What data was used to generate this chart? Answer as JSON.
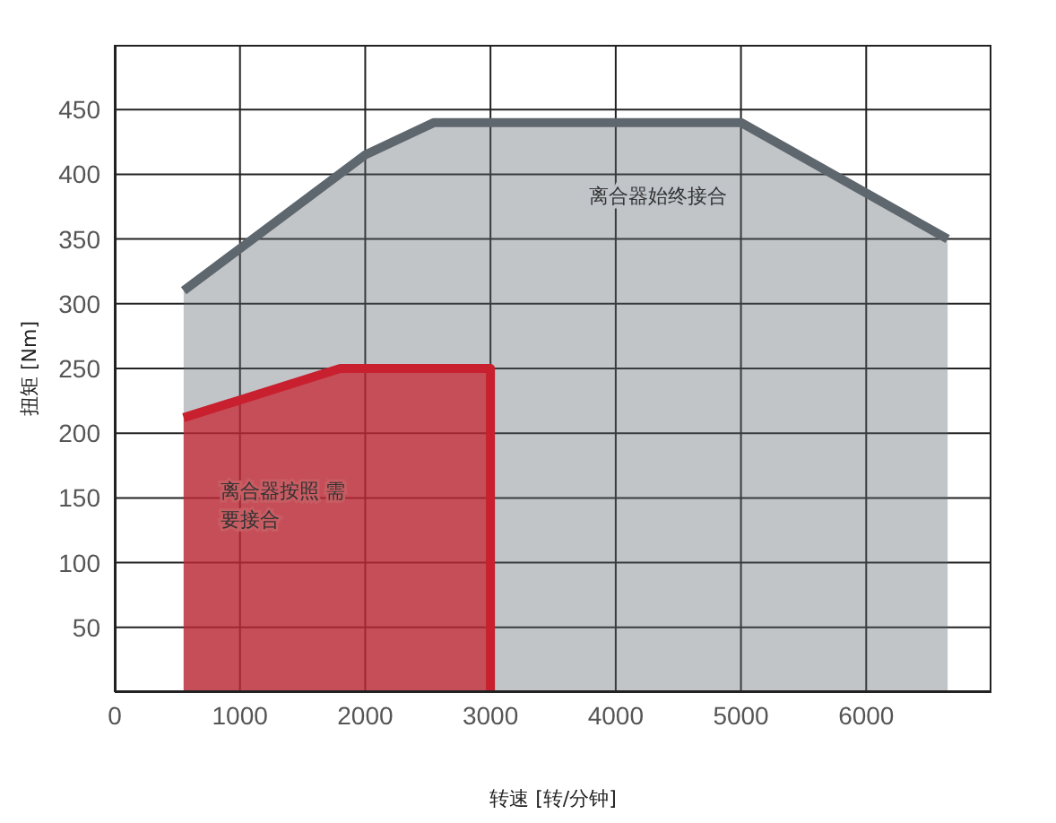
{
  "chart_data": {
    "type": "area",
    "xlabel": "转速 [转/分钟]",
    "ylabel": "扭矩 [Nm]",
    "xlim": [
      0,
      7000
    ],
    "xticks": [
      0,
      1000,
      2000,
      3000,
      4000,
      5000,
      6000
    ],
    "ylim": [
      0,
      500
    ],
    "yticks": [
      50,
      100,
      150,
      200,
      250,
      300,
      350,
      400,
      450
    ],
    "grid": true,
    "series": [
      {
        "color": "#5e666e",
        "x": [
          550,
          2000,
          2550,
          5000,
          6650
        ],
        "values": [
          310,
          415,
          440,
          440,
          350
        ]
      },
      {
        "color": "#c8202e",
        "x": [
          550,
          1800,
          3000,
          3000
        ],
        "values": [
          212,
          250,
          250,
          0
        ]
      }
    ],
    "annotations": [
      "离合器始终接合",
      "离合器按照 需要接合"
    ]
  }
}
